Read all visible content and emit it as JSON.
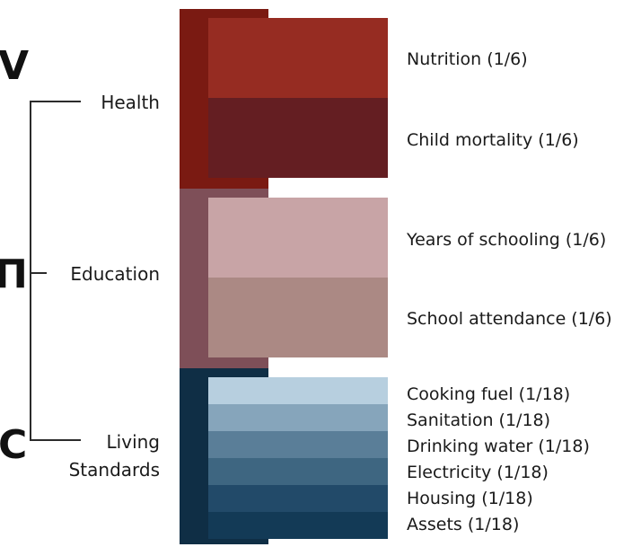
{
  "colors": {
    "health_dark": "#7a1a12",
    "education_dark": "#7e4f58",
    "living_dark": "#0f2e45",
    "nutrition": "#962c22",
    "child_mortality": "#641e22",
    "years_schooling": "#c8a4a6",
    "school_attendance": "#ab8984",
    "cooking_fuel": "#b7cfdf",
    "sanitation": "#86a5bb",
    "drinking_water": "#5a7e98",
    "electricity": "#3e6681",
    "housing": "#224a69",
    "assets": "#133a56"
  },
  "dimensions": {
    "health": "Health",
    "education": "Education",
    "living_line1": "Living",
    "living_line2": "Standards"
  },
  "indicators": {
    "nutrition": "Nutrition (1/6)",
    "child_mortality": "Child mortality (1/6)",
    "years_schooling": "Years of schooling (1/6)",
    "school_attendance": "School attendance (1/6)",
    "cooking_fuel": "Cooking fuel (1/18)",
    "sanitation": "Sanitation (1/18)",
    "drinking_water": "Drinking water (1/18)",
    "electricity": "Electricity (1/18)",
    "housing": "Housing (1/18)",
    "assets": "Assets (1/18)"
  },
  "background_fragments": {
    "top": "V",
    "middle": "П",
    "bottom": "C"
  }
}
